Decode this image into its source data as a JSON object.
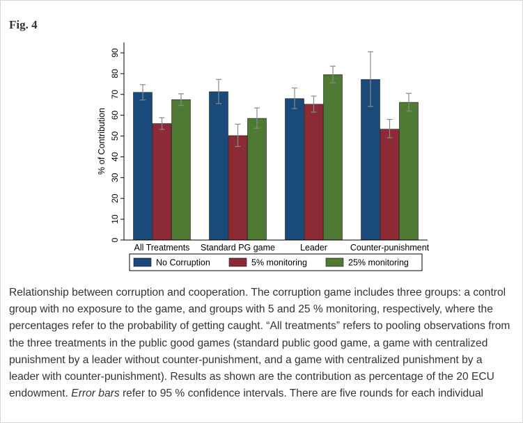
{
  "figure": {
    "label": "Fig. 4",
    "caption_parts": [
      "Relationship between corruption and cooperation. The corruption game includes three groups: a control group with no exposure to the game, and groups with 5 and 25 % monitoring, respectively, where the percentages refer to the probability of getting caught. “All treatments” refers to pooling observations from the three treatments in the public good games (standard public good game, a game with centralized punishment by a leader without counter-punishment, and a game with centralized punishment by a leader with counter-punishment). Results as shown are the contribution as percentage of the 20 ECU endowment. ",
      "Error bars",
      " refer to 95 % confidence intervals. There are five rounds for each individual"
    ]
  },
  "chart_data": {
    "type": "bar",
    "title": "",
    "xlabel": "",
    "ylabel": "% of Contribution",
    "ylim": [
      0,
      95
    ],
    "yticks": [
      0,
      10,
      20,
      30,
      40,
      50,
      60,
      70,
      80,
      90
    ],
    "grid": false,
    "legend_position": "bottom",
    "categories": [
      "All Treatments",
      "Standard PG game",
      "Leader",
      "Counter-punishment"
    ],
    "series": [
      {
        "name": "No Corruption",
        "color": "#1a4a7a",
        "values": [
          71,
          71.3,
          68,
          77.2
        ],
        "ci_low": [
          67.3,
          65.6,
          63.2,
          64.2
        ],
        "ci_high": [
          74.7,
          77.2,
          73.1,
          90.5
        ]
      },
      {
        "name": "5% monitoring",
        "color": "#8c2b36",
        "values": [
          56,
          50.2,
          65.3,
          53.3
        ],
        "ci_low": [
          53.2,
          45,
          61.5,
          49.2
        ],
        "ci_high": [
          58.8,
          55.7,
          69.2,
          58
        ]
      },
      {
        "name": "25% monitoring",
        "color": "#4e7a34",
        "values": [
          67.5,
          58.5,
          79.5,
          66.2
        ],
        "ci_low": [
          64.7,
          53.8,
          75.6,
          62
        ],
        "ci_high": [
          70.3,
          63.5,
          83.6,
          70.5
        ]
      }
    ]
  }
}
